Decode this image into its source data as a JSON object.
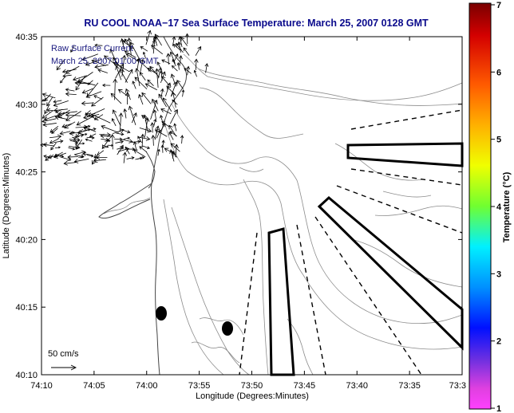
{
  "title": "RU COOL  NOAA−17  Sea Surface Temperature:  March 25, 2007 0128 GMT",
  "annotation": {
    "line1": "Raw Surface Current",
    "line2": "March 25, 2007 01:00 GMT"
  },
  "scale_label": "50 cm/s",
  "axes": {
    "xlabel": "Longitude (Degrees:Minutes)",
    "ylabel": "Latitude (Degrees:Minutes)",
    "x_ticks": [
      "74:10",
      "74:05",
      "74:00",
      "73:55",
      "73:50",
      "73:45",
      "73:40",
      "73:35",
      "73:3"
    ],
    "y_ticks": [
      "40:35",
      "40:30",
      "40:25",
      "40:20",
      "40:15",
      "40:10"
    ]
  },
  "colorbar": {
    "label": "Temperature (°C)",
    "ticks": [
      "7",
      "6",
      "5",
      "4",
      "3",
      "2",
      "1"
    ],
    "min": 1,
    "max": 7
  },
  "colors": {
    "title": "#0a0a8c",
    "contour": "#8c8c8c",
    "coast": "#555555",
    "vectors": "#000000"
  },
  "map_icons": [
    "current-vector-field",
    "bathymetry-contours",
    "coastline",
    "sampling-box",
    "buoy-marker"
  ]
}
